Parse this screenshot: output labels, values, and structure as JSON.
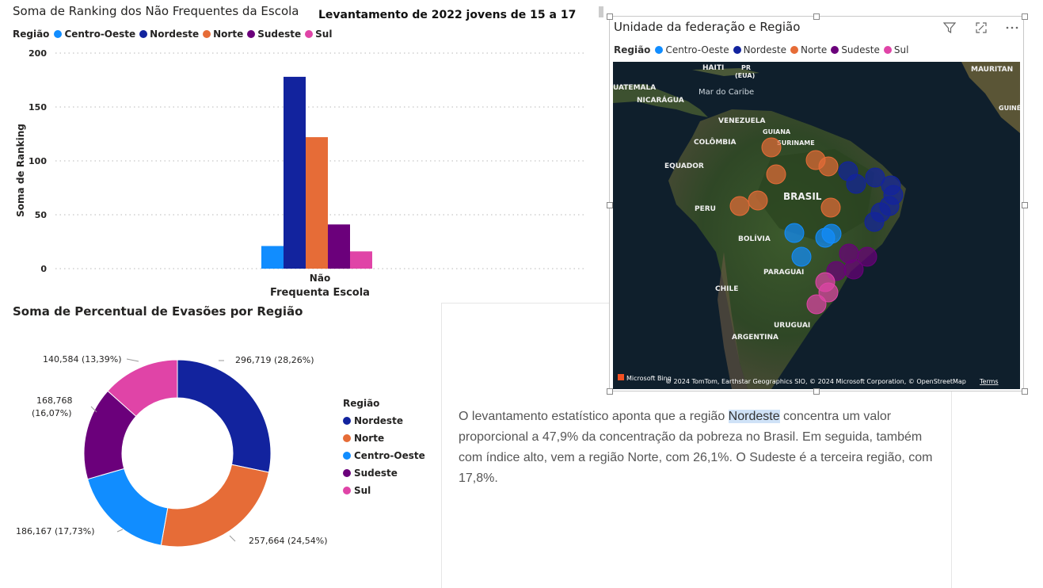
{
  "bar_chart": {
    "title": "Soma de Ranking dos Não Frequentes da Escola",
    "legend_label": "Região",
    "legend": [
      {
        "name": "Centro-Oeste",
        "color": "#118dff"
      },
      {
        "name": "Nordeste",
        "color": "#12239e"
      },
      {
        "name": "Norte",
        "color": "#e66c37"
      },
      {
        "name": "Sudeste",
        "color": "#6b007b"
      },
      {
        "name": "Sul",
        "color": "#e044a7"
      }
    ],
    "ylabel": "Soma de Ranking",
    "xlabel": "Frequenta Escola",
    "category": "Não"
  },
  "header_title": "Levantamento de 2022 jovens de 15 a 17",
  "donut": {
    "title": "Soma de Percentual de Evasões por Região",
    "legend_label": "Região",
    "legend": [
      {
        "name": "Nordeste",
        "color": "#12239e"
      },
      {
        "name": "Norte",
        "color": "#e66c37"
      },
      {
        "name": "Centro-Oeste",
        "color": "#118dff"
      },
      {
        "name": "Sudeste",
        "color": "#6b007b"
      },
      {
        "name": "Sul",
        "color": "#e044a7"
      }
    ],
    "labels": {
      "nordeste": "296,719 (28,26%)",
      "norte": "257,664 (24,54%)",
      "centro": "186,167 (17,73%)",
      "sudeste_1": "168,768",
      "sudeste_2": "(16,07%)",
      "sul": "140,584 (13,39%)"
    }
  },
  "text_card": {
    "before": "O levantamento estatístico aponta que a região ",
    "highlight": "Nordeste",
    "after": " concentra um valor proporcional a 47,9% da concentração da pobreza no Brasil. Em seguida, também com índice alto, vem a região Norte, com 26,1%. O Sudeste é a terceira região, com 17,8%."
  },
  "map": {
    "title": "Unidade da federação e Região",
    "legend_label": "Região",
    "legend": [
      {
        "name": "Centro-Oeste",
        "color": "#118dff"
      },
      {
        "name": "Nordeste",
        "color": "#12239e"
      },
      {
        "name": "Norte",
        "color": "#e66c37"
      },
      {
        "name": "Sudeste",
        "color": "#6b007b"
      },
      {
        "name": "Sul",
        "color": "#e044a7"
      }
    ],
    "icons": [
      "filter-icon",
      "focus-mode-icon",
      "more-options-icon"
    ],
    "labels": {
      "haiti": "HAITI",
      "pr": "PR",
      "eua": "(EUA)",
      "guatemala": "UATEMALA",
      "nicaragua": "NICARÁGUA",
      "caribe": "Mar do Caribe",
      "venezuela": "VENEZUELA",
      "guiana": "GUIANA",
      "suriname": "SURINAME",
      "colombia": "COLÔMBIA",
      "equador": "EQUADOR",
      "brasil": "BRASIL",
      "peru": "PERU",
      "bolivia": "BOLÍVIA",
      "paraguai": "PARAGUAI",
      "chile": "CHILE",
      "uruguai": "URUGUAI",
      "argentina": "ARGENTINA",
      "mauritania": "MAURITAN",
      "guine": "GUINÉ"
    },
    "attribution": "© 2024 TomTom, Earthstar Geographics SIO, © 2024 Microsoft Corporation, © OpenStreetMap",
    "terms": "Terms",
    "bing": "Microsoft Bing"
  },
  "chart_data": [
    {
      "type": "bar",
      "title": "Soma de Ranking dos Não Frequentes da Escola",
      "xlabel": "Frequenta Escola",
      "ylabel": "Soma de Ranking",
      "categories": [
        "Não"
      ],
      "series": [
        {
          "name": "Centro-Oeste",
          "color": "#118dff",
          "values": [
            21
          ]
        },
        {
          "name": "Nordeste",
          "color": "#12239e",
          "values": [
            178
          ]
        },
        {
          "name": "Norte",
          "color": "#e66c37",
          "values": [
            122
          ]
        },
        {
          "name": "Sudeste",
          "color": "#6b007b",
          "values": [
            41
          ]
        },
        {
          "name": "Sul",
          "color": "#e044a7",
          "values": [
            16
          ]
        }
      ],
      "ylim": [
        0,
        200
      ],
      "yticks": [
        0,
        50,
        100,
        150,
        200
      ],
      "grid": true,
      "legend_position": "top-left"
    },
    {
      "type": "pie",
      "donut": true,
      "title": "Soma de Percentual de Evasões por Região",
      "slices": [
        {
          "name": "Nordeste",
          "value": 296.719,
          "percent": 28.26,
          "color": "#12239e"
        },
        {
          "name": "Norte",
          "value": 257.664,
          "percent": 24.54,
          "color": "#e66c37"
        },
        {
          "name": "Centro-Oeste",
          "value": 186.167,
          "percent": 17.73,
          "color": "#118dff"
        },
        {
          "name": "Sudeste",
          "value": 168.768,
          "percent": 16.07,
          "color": "#6b007b"
        },
        {
          "name": "Sul",
          "value": 140.584,
          "percent": 13.39,
          "color": "#e044a7"
        }
      ],
      "legend_position": "right"
    }
  ]
}
